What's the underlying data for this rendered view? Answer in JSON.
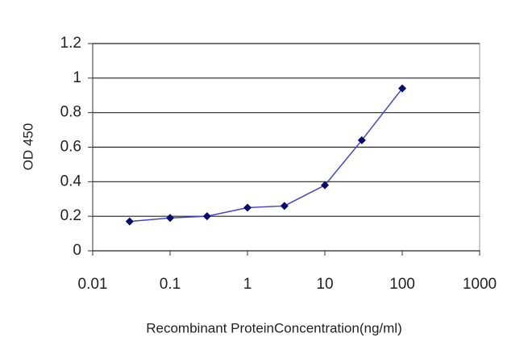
{
  "chart_data": {
    "type": "line",
    "x_label": "Recombinant ProteinConcentration(ng/ml)",
    "y_label": "OD 450",
    "x": [
      0.03,
      0.1,
      0.3,
      1,
      3,
      10,
      30,
      100
    ],
    "series": [
      {
        "color": "#4646c8",
        "marker_color": "#0a0a6e",
        "values": [
          0.17,
          0.19,
          0.2,
          0.25,
          0.26,
          0.38,
          0.64,
          0.94
        ]
      }
    ],
    "xscale": "log",
    "xlim": [
      0.01,
      1000
    ],
    "xticks": [
      0.01,
      0.1,
      1,
      10,
      100,
      1000
    ],
    "ylim": [
      0,
      1.2
    ],
    "yticks": [
      0,
      0.2,
      0.4,
      0.6,
      0.8,
      1,
      1.2
    ],
    "grid": true
  }
}
